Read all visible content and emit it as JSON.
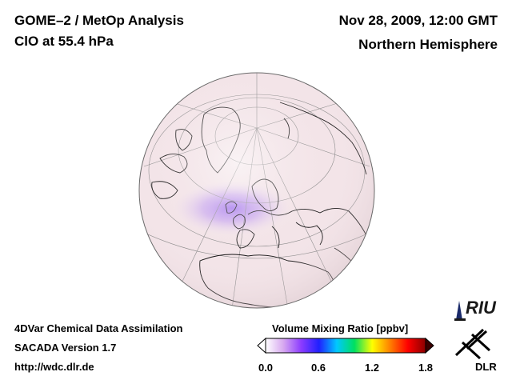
{
  "header": {
    "title": "GOME–2 / MetOp Analysis",
    "subtitle": "ClO at 55.4 hPa",
    "date": "Nov 28, 2009, 12:00 GMT",
    "hemisphere": "Northern Hemisphere"
  },
  "footer": {
    "line1": "4DVar Chemical Data Assimilation",
    "line2": "SACADA Version 1.7",
    "line3": "http://wdc.dlr.de"
  },
  "colorbar": {
    "label": "Volume Mixing Ratio [ppbv]",
    "ticks": [
      "0.0",
      "0.6",
      "1.2",
      "1.8"
    ],
    "min": 0.0,
    "max": 1.8,
    "colors": [
      "#ffffff",
      "#d7a8f0",
      "#8c3cff",
      "#2020ff",
      "#00c8ff",
      "#00e060",
      "#ffff00",
      "#ff8000",
      "#ff0000",
      "#8b0000"
    ]
  },
  "map": {
    "projection": "orthographic",
    "view": "Northern Hemisphere, Atlantic-centred",
    "background_color": "#f3e4e8",
    "enhancement_color": "#9b6cf0"
  },
  "logos": {
    "riu": "RIU",
    "dlr": "DLR"
  }
}
